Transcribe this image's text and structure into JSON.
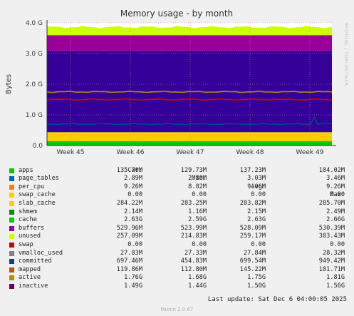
{
  "chart_data": {
    "type": "area",
    "title": "Memory usage - by month",
    "ylabel": "Bytes",
    "ylim": [
      0,
      4.0
    ],
    "y_ticks": [
      "0.0",
      "1.0 G",
      "2.0 G",
      "3.0 G",
      "4.0 G"
    ],
    "x_ticks": [
      "Week 45",
      "Week 46",
      "Week 47",
      "Week 48",
      "Week 49"
    ],
    "grid": true,
    "series": [
      {
        "name": "apps",
        "color": "#00cc00",
        "band": [
          0.0,
          0.137
        ]
      },
      {
        "name": "page_tables",
        "color": "#0066b3",
        "band": [
          0.137,
          0.14
        ]
      },
      {
        "name": "per_cpu",
        "color": "#ff8000",
        "band": [
          0.14,
          0.149
        ]
      },
      {
        "name": "slab_cache",
        "color": "#ffcc00",
        "band": [
          0.149,
          0.433
        ]
      },
      {
        "name": "shmem",
        "color": "#008f00",
        "band": [
          0.433,
          0.435
        ]
      },
      {
        "name": "cache",
        "color": "#330099",
        "band": [
          0.435,
          3.07
        ]
      },
      {
        "name": "buffers",
        "color": "#990099",
        "band": [
          3.07,
          3.6
        ]
      },
      {
        "name": "unused",
        "color": "#ccff00",
        "band": [
          3.6,
          3.86
        ]
      },
      {
        "name": "committed",
        "color": "#00487d",
        "line": 0.7
      },
      {
        "name": "active",
        "color": "#b8860b",
        "line": 1.75
      },
      {
        "name": "inactive",
        "color": "#cc0000",
        "line": 1.5
      }
    ]
  },
  "brand_side_text": "RRDTOOL / TOBI OETIKER",
  "legend": {
    "headers": [
      "Cur:",
      "Min:",
      "Avg:",
      "Max:"
    ],
    "rows": [
      {
        "name": "apps",
        "color": "#00cc00",
        "cur": "135.70M",
        "min": "129.73M",
        "avg": "137.23M",
        "max": "184.02M"
      },
      {
        "name": "page_tables",
        "color": "#0066b3",
        "cur": "2.89M",
        "min": "2.80M",
        "avg": "3.03M",
        "max": "3.46M"
      },
      {
        "name": "per_cpu",
        "color": "#ff8000",
        "cur": "9.26M",
        "min": "8.82M",
        "avg": "9.06M",
        "max": "9.26M"
      },
      {
        "name": "swap_cache",
        "color": "#ffcc00",
        "cur": "0.00",
        "min": "0.00",
        "avg": "0.00",
        "max": "0.00"
      },
      {
        "name": "slab_cache",
        "color": "#ffcc00",
        "cur": "284.22M",
        "min": "283.25M",
        "avg": "283.82M",
        "max": "285.70M"
      },
      {
        "name": "shmem",
        "color": "#008f00",
        "cur": "2.14M",
        "min": "1.16M",
        "avg": "2.15M",
        "max": "2.49M"
      },
      {
        "name": "cache",
        "color": "#00cc00",
        "cur": "2.63G",
        "min": "2.59G",
        "avg": "2.63G",
        "max": "2.66G"
      },
      {
        "name": "buffers",
        "color": "#990099",
        "cur": "529.96M",
        "min": "523.99M",
        "avg": "528.09M",
        "max": "530.39M"
      },
      {
        "name": "unused",
        "color": "#ccff00",
        "cur": "257.09M",
        "min": "214.83M",
        "avg": "259.17M",
        "max": "303.43M"
      },
      {
        "name": "swap",
        "color": "#cc0000",
        "cur": "0.00",
        "min": "0.00",
        "avg": "0.00",
        "max": "0.00"
      },
      {
        "name": "vmalloc_used",
        "color": "#808080",
        "cur": "27.83M",
        "min": "27.33M",
        "avg": "27.84M",
        "max": "28.32M"
      },
      {
        "name": "committed",
        "color": "#00487d",
        "cur": "697.46M",
        "min": "454.83M",
        "avg": "699.54M",
        "max": "949.42M"
      },
      {
        "name": "mapped",
        "color": "#b35a00",
        "cur": "119.86M",
        "min": "112.80M",
        "avg": "145.22M",
        "max": "181.71M"
      },
      {
        "name": "active",
        "color": "#b38f00",
        "cur": "1.76G",
        "min": "1.68G",
        "avg": "1.75G",
        "max": "1.81G"
      },
      {
        "name": "inactive",
        "color": "#6b006b",
        "cur": "1.49G",
        "min": "1.44G",
        "avg": "1.50G",
        "max": "1.56G"
      }
    ]
  },
  "last_update": "Last update: Sat Dec  6 04:00:05 2025",
  "version": "Munin 2.0.67"
}
